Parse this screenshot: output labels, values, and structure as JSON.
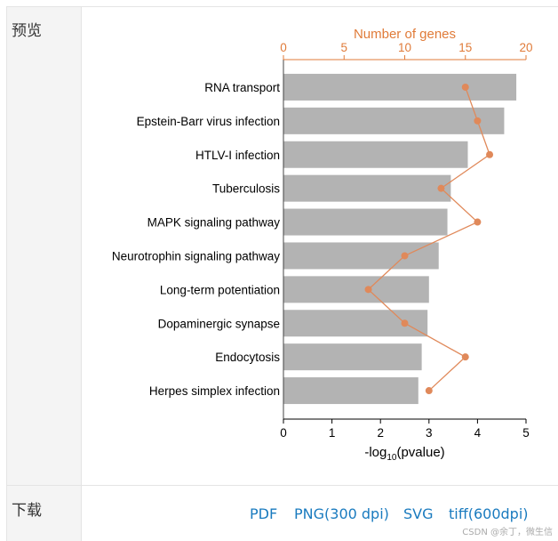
{
  "labels": {
    "preview": "预览",
    "download": "下载"
  },
  "downloads": [
    {
      "label": "PDF"
    },
    {
      "label": "PNG(300 dpi)"
    },
    {
      "label": "SVG"
    },
    {
      "label": "tiff(600dpi)"
    }
  ],
  "watermark": "CSDN @余丁，微生信",
  "colors": {
    "bar": "#b3b3b3",
    "line": "#e0895a",
    "top_axis": "#e07b39",
    "link": "#1a7bbf"
  },
  "chart_data": {
    "type": "bar",
    "orientation": "horizontal",
    "categories": [
      "RNA transport",
      "Epstein-Barr virus infection",
      "HTLV-I infection",
      "Tuberculosis",
      "MAPK signaling pathway",
      "Neurotrophin signaling pathway",
      "Long-term potentiation",
      "Dopaminergic synapse",
      "Endocytosis",
      "Herpes simplex infection"
    ],
    "values": [
      4.8,
      4.55,
      3.8,
      3.45,
      3.38,
      3.2,
      3.0,
      2.97,
      2.85,
      2.78
    ],
    "xlabel_main": "-log",
    "xlabel_sub": "10",
    "xlabel_rest": "(pvalue)",
    "xlim": [
      0,
      5
    ],
    "xticks": [
      "0",
      "1",
      "2",
      "3",
      "4",
      "5"
    ],
    "line_series": {
      "values": [
        15,
        16,
        17,
        13,
        16,
        10,
        7,
        10,
        15,
        12
      ],
      "axis_label": "Number of genes",
      "lim": [
        0,
        20
      ],
      "ticks": [
        "0",
        "5",
        "10",
        "15",
        "20"
      ]
    }
  }
}
